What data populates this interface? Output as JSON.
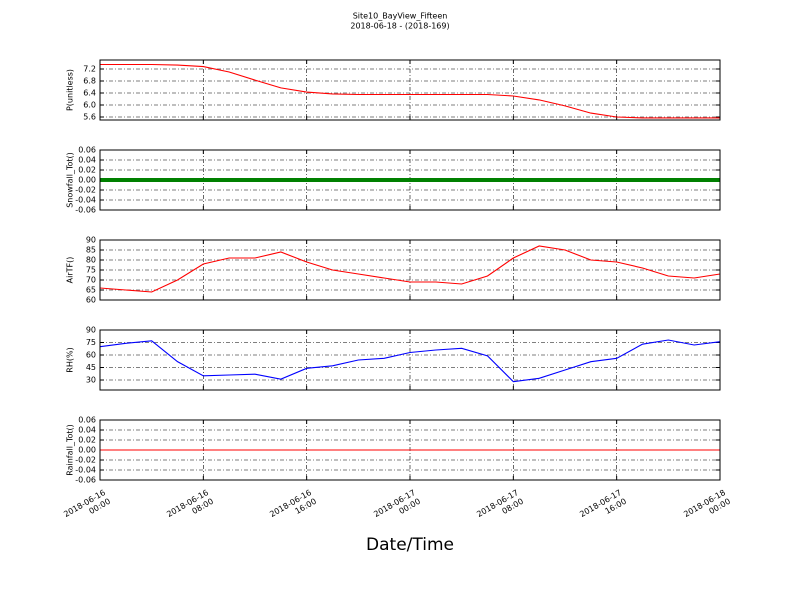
{
  "title": "Site10_BayView_Fifteen",
  "subtitle": "2018-06-18 - (2018-169)",
  "xlabel": "Date/Time",
  "chart_data": [
    {
      "type": "line",
      "ylabel": "P(unitless)",
      "color": "#ff0000",
      "grid": true,
      "x": [
        "2018-06-16 00:00",
        "2018-06-16 02:00",
        "2018-06-16 04:00",
        "2018-06-16 06:00",
        "2018-06-16 08:00",
        "2018-06-16 10:00",
        "2018-06-16 12:00",
        "2018-06-16 14:00",
        "2018-06-16 16:00",
        "2018-06-16 18:00",
        "2018-06-16 20:00",
        "2018-06-16 22:00",
        "2018-06-17 00:00",
        "2018-06-17 02:00",
        "2018-06-17 04:00",
        "2018-06-17 06:00",
        "2018-06-17 08:00",
        "2018-06-17 10:00",
        "2018-06-17 12:00",
        "2018-06-17 14:00",
        "2018-06-17 16:00",
        "2018-06-17 18:00",
        "2018-06-17 20:00",
        "2018-06-17 22:00",
        "2018-06-18 00:00"
      ],
      "values": [
        7.35,
        7.35,
        7.35,
        7.33,
        7.28,
        7.1,
        6.83,
        6.57,
        6.43,
        6.37,
        6.35,
        6.35,
        6.35,
        6.35,
        6.35,
        6.35,
        6.3,
        6.17,
        5.97,
        5.73,
        5.6,
        5.57,
        5.57,
        5.57,
        5.57
      ],
      "xlim": [
        "2018-06-16 00:00",
        "2018-06-18 00:00"
      ],
      "xticks": [
        {
          "value": "2018-06-16 00:00",
          "label": "2018-06-16\n00:00"
        },
        {
          "value": "2018-06-16 08:00",
          "label": "2018-06-16\n08:00"
        },
        {
          "value": "2018-06-16 16:00",
          "label": "2018-06-16\n16:00"
        },
        {
          "value": "2018-06-17 00:00",
          "label": "2018-06-17\n00:00"
        },
        {
          "value": "2018-06-17 08:00",
          "label": "2018-06-17\n08:00"
        },
        {
          "value": "2018-06-17 16:00",
          "label": "2018-06-17\n16:00"
        },
        {
          "value": "2018-06-18 00:00",
          "label": "2018-06-18\n00:00"
        }
      ],
      "ylim": [
        5.5,
        7.5
      ],
      "yticks": [
        5.6,
        {
          "value": 6,
          "label": "6.0"
        },
        6.4,
        6.8,
        7.2
      ]
    },
    {
      "type": "line",
      "ylabel": "Snowfall_Tot()",
      "color": "#008000",
      "grid": true,
      "x": [
        "2018-06-16 00:00",
        "2018-06-16 02:00",
        "2018-06-16 04:00",
        "2018-06-16 06:00",
        "2018-06-16 08:00",
        "2018-06-16 10:00",
        "2018-06-16 12:00",
        "2018-06-16 14:00",
        "2018-06-16 16:00",
        "2018-06-16 18:00",
        "2018-06-16 20:00",
        "2018-06-16 22:00",
        "2018-06-17 00:00",
        "2018-06-17 02:00",
        "2018-06-17 04:00",
        "2018-06-17 06:00",
        "2018-06-17 08:00",
        "2018-06-17 10:00",
        "2018-06-17 12:00",
        "2018-06-17 14:00",
        "2018-06-17 16:00",
        "2018-06-17 18:00",
        "2018-06-17 20:00",
        "2018-06-17 22:00",
        "2018-06-18 00:00"
      ],
      "values": [
        0,
        0,
        0,
        0,
        0,
        0,
        0,
        0,
        0,
        0,
        0,
        0,
        0,
        0,
        0,
        0,
        0,
        0,
        0,
        0,
        0,
        0,
        0,
        0,
        0
      ],
      "xlim": [
        "2018-06-16 00:00",
        "2018-06-18 00:00"
      ],
      "xticks": [
        {
          "value": "2018-06-16 00:00",
          "label": "2018-06-16\n00:00"
        },
        {
          "value": "2018-06-16 08:00",
          "label": "2018-06-16\n08:00"
        },
        {
          "value": "2018-06-16 16:00",
          "label": "2018-06-16\n16:00"
        },
        {
          "value": "2018-06-17 00:00",
          "label": "2018-06-17\n00:00"
        },
        {
          "value": "2018-06-17 08:00",
          "label": "2018-06-17\n08:00"
        },
        {
          "value": "2018-06-17 16:00",
          "label": "2018-06-17\n16:00"
        },
        {
          "value": "2018-06-18 00:00",
          "label": "2018-06-18\n00:00"
        }
      ],
      "ylim": [
        -0.06,
        0.06
      ],
      "yticks": [
        -0.06,
        -0.04,
        -0.02,
        {
          "value": 0,
          "label": "0.00"
        },
        0.02,
        0.04,
        0.06
      ]
    },
    {
      "type": "line",
      "ylabel": "AirTF()",
      "color": "#ff0000",
      "grid": true,
      "x": [
        "2018-06-16 00:00",
        "2018-06-16 02:00",
        "2018-06-16 04:00",
        "2018-06-16 06:00",
        "2018-06-16 08:00",
        "2018-06-16 10:00",
        "2018-06-16 12:00",
        "2018-06-16 14:00",
        "2018-06-16 16:00",
        "2018-06-16 18:00",
        "2018-06-16 20:00",
        "2018-06-16 22:00",
        "2018-06-17 00:00",
        "2018-06-17 02:00",
        "2018-06-17 04:00",
        "2018-06-17 06:00",
        "2018-06-17 08:00",
        "2018-06-17 10:00",
        "2018-06-17 12:00",
        "2018-06-17 14:00",
        "2018-06-17 16:00",
        "2018-06-17 18:00",
        "2018-06-17 20:00",
        "2018-06-17 22:00",
        "2018-06-18 00:00"
      ],
      "values": [
        66,
        65,
        64,
        70,
        78,
        81,
        81,
        84,
        79,
        75,
        73,
        71,
        69,
        69,
        68,
        72,
        81,
        87,
        85,
        80,
        79,
        76,
        72,
        71,
        73
      ],
      "xlim": [
        "2018-06-16 00:00",
        "2018-06-18 00:00"
      ],
      "xticks": [
        {
          "value": "2018-06-16 00:00",
          "label": "2018-06-16\n00:00"
        },
        {
          "value": "2018-06-16 08:00",
          "label": "2018-06-16\n08:00"
        },
        {
          "value": "2018-06-16 16:00",
          "label": "2018-06-16\n16:00"
        },
        {
          "value": "2018-06-17 00:00",
          "label": "2018-06-17\n00:00"
        },
        {
          "value": "2018-06-17 08:00",
          "label": "2018-06-17\n08:00"
        },
        {
          "value": "2018-06-17 16:00",
          "label": "2018-06-17\n16:00"
        },
        {
          "value": "2018-06-18 00:00",
          "label": "2018-06-18\n00:00"
        }
      ],
      "ylim": [
        60,
        90
      ],
      "yticks": [
        60,
        65,
        70,
        75,
        80,
        85,
        90
      ]
    },
    {
      "type": "line",
      "ylabel": "RH(%)",
      "color": "#0000ff",
      "grid": true,
      "x": [
        "2018-06-16 00:00",
        "2018-06-16 02:00",
        "2018-06-16 04:00",
        "2018-06-16 06:00",
        "2018-06-16 08:00",
        "2018-06-16 10:00",
        "2018-06-16 12:00",
        "2018-06-16 14:00",
        "2018-06-16 16:00",
        "2018-06-16 18:00",
        "2018-06-16 20:00",
        "2018-06-16 22:00",
        "2018-06-17 00:00",
        "2018-06-17 02:00",
        "2018-06-17 04:00",
        "2018-06-17 06:00",
        "2018-06-17 08:00",
        "2018-06-17 10:00",
        "2018-06-17 12:00",
        "2018-06-17 14:00",
        "2018-06-17 16:00",
        "2018-06-17 18:00",
        "2018-06-17 20:00",
        "2018-06-17 22:00",
        "2018-06-18 00:00"
      ],
      "values": [
        70,
        74,
        77,
        52,
        35,
        36,
        37,
        31,
        44,
        47,
        54,
        56,
        63,
        66,
        68,
        59,
        28,
        32,
        42,
        52,
        56,
        73,
        78,
        72,
        76
      ],
      "xlim": [
        "2018-06-16 00:00",
        "2018-06-18 00:00"
      ],
      "xticks": [
        {
          "value": "2018-06-16 00:00",
          "label": "2018-06-16\n00:00"
        },
        {
          "value": "2018-06-16 08:00",
          "label": "2018-06-16\n08:00"
        },
        {
          "value": "2018-06-16 16:00",
          "label": "2018-06-16\n16:00"
        },
        {
          "value": "2018-06-17 00:00",
          "label": "2018-06-17\n00:00"
        },
        {
          "value": "2018-06-17 08:00",
          "label": "2018-06-17\n08:00"
        },
        {
          "value": "2018-06-17 16:00",
          "label": "2018-06-17\n16:00"
        },
        {
          "value": "2018-06-18 00:00",
          "label": "2018-06-18\n00:00"
        }
      ],
      "ylim": [
        18,
        90
      ],
      "yticks": [
        30,
        45,
        60,
        75,
        90
      ]
    },
    {
      "type": "line",
      "ylabel": "Rainfall_Tot()",
      "color": "#ff0000",
      "grid": true,
      "x": [
        "2018-06-16 00:00",
        "2018-06-16 02:00",
        "2018-06-16 04:00",
        "2018-06-16 06:00",
        "2018-06-16 08:00",
        "2018-06-16 10:00",
        "2018-06-16 12:00",
        "2018-06-16 14:00",
        "2018-06-16 16:00",
        "2018-06-16 18:00",
        "2018-06-16 20:00",
        "2018-06-16 22:00",
        "2018-06-17 00:00",
        "2018-06-17 02:00",
        "2018-06-17 04:00",
        "2018-06-17 06:00",
        "2018-06-17 08:00",
        "2018-06-17 10:00",
        "2018-06-17 12:00",
        "2018-06-17 14:00",
        "2018-06-17 16:00",
        "2018-06-17 18:00",
        "2018-06-17 20:00",
        "2018-06-17 22:00",
        "2018-06-18 00:00"
      ],
      "values": [
        0,
        0,
        0,
        0,
        0,
        0,
        0,
        0,
        0,
        0,
        0,
        0,
        0,
        0,
        0,
        0,
        0,
        0,
        0,
        0,
        0,
        0,
        0,
        0,
        0
      ],
      "xlim": [
        "2018-06-16 00:00",
        "2018-06-18 00:00"
      ],
      "xticks": [
        {
          "value": "2018-06-16 00:00",
          "label": "2018-06-16\n00:00"
        },
        {
          "value": "2018-06-16 08:00",
          "label": "2018-06-16\n08:00"
        },
        {
          "value": "2018-06-16 16:00",
          "label": "2018-06-16\n16:00"
        },
        {
          "value": "2018-06-17 00:00",
          "label": "2018-06-17\n00:00"
        },
        {
          "value": "2018-06-17 08:00",
          "label": "2018-06-17\n08:00"
        },
        {
          "value": "2018-06-17 16:00",
          "label": "2018-06-17\n16:00"
        },
        {
          "value": "2018-06-18 00:00",
          "label": "2018-06-18\n00:00"
        }
      ],
      "ylim": [
        -0.06,
        0.06
      ],
      "yticks": [
        -0.06,
        -0.04,
        -0.02,
        {
          "value": 0,
          "label": "0.00"
        },
        0.02,
        0.04,
        0.06
      ]
    }
  ]
}
